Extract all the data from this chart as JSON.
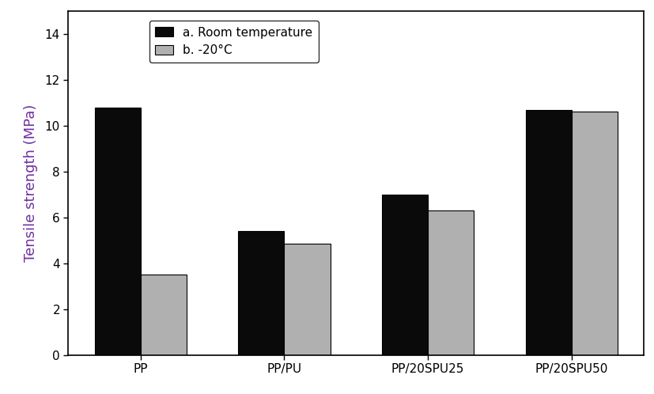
{
  "categories": [
    "PP",
    "PP/PU",
    "PP/20SPU25",
    "PP/20SPU50"
  ],
  "room_temp_values": [
    10.8,
    5.4,
    7.0,
    10.7
  ],
  "cold_temp_values": [
    3.5,
    4.85,
    6.3,
    10.6
  ],
  "bar_color_room": "#0a0a0a",
  "bar_color_cold": "#b0b0b0",
  "ylabel": "Tensile strength (MPa)",
  "ylabel_color": "#7030a0",
  "ylim": [
    0,
    15
  ],
  "yticks": [
    0,
    2,
    4,
    6,
    8,
    10,
    12,
    14
  ],
  "legend_label_room": "a. Room temperature",
  "legend_label_cold": "b. -20°C",
  "bar_width": 0.32,
  "bar_edgecolor": "#000000",
  "figsize": [
    8.28,
    4.98
  ],
  "dpi": 100,
  "font_size_ticks": 11,
  "font_size_ylabel": 13,
  "font_size_legend": 11
}
